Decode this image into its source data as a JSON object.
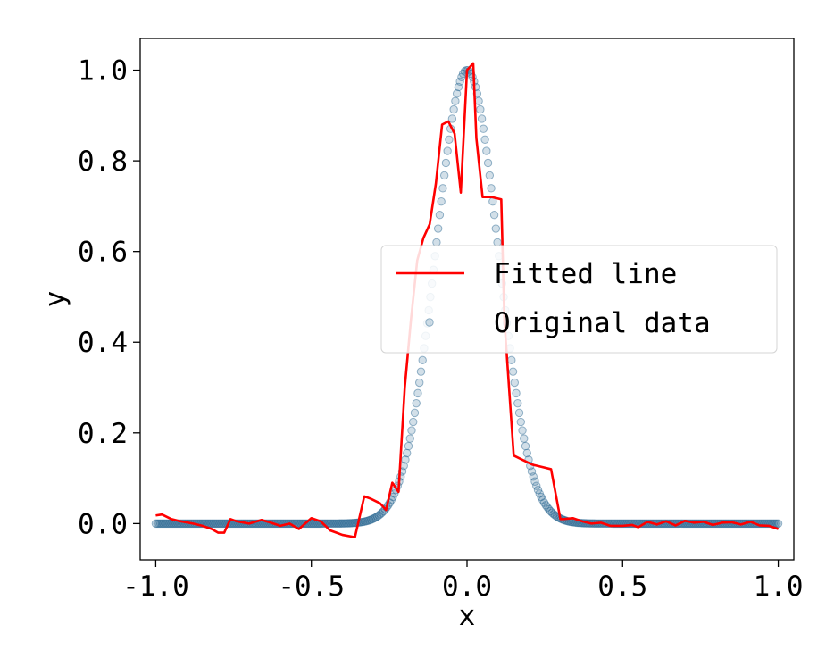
{
  "chart_data": {
    "type": "scatter",
    "xlabel": "x",
    "ylabel": "y",
    "xlim": [
      -1.05,
      1.05
    ],
    "ylim": [
      -0.08,
      1.07
    ],
    "x_ticks": [
      -1.0,
      -0.5,
      0.0,
      0.5,
      1.0
    ],
    "x_tick_labels": [
      "-1.0",
      "-0.5",
      "0.0",
      "0.5",
      "1.0"
    ],
    "y_ticks": [
      0.0,
      0.2,
      0.4,
      0.6,
      0.8,
      1.0
    ],
    "y_tick_labels": [
      "0.0",
      "0.2",
      "0.4",
      "0.6",
      "0.8",
      "1.0"
    ],
    "grid": false,
    "legend": {
      "position": "center-right",
      "entries": [
        {
          "label": "Fitted line",
          "style": "line",
          "color": "#ff0000"
        },
        {
          "label": "Original data",
          "style": "marker",
          "color": "#1f5f8b"
        }
      ]
    },
    "series": [
      {
        "name": "Original data",
        "kind": "scatter",
        "color": "#1f5f8b",
        "function": "gaussian",
        "amplitude": 1.0,
        "center": 0.0,
        "sigma": 0.1,
        "x_range": [
          -1.0,
          1.0
        ],
        "n_points": 400
      },
      {
        "name": "Fitted line",
        "kind": "line",
        "color": "#ff0000",
        "x": [
          -1.0,
          -0.98,
          -0.95,
          -0.92,
          -0.88,
          -0.85,
          -0.82,
          -0.8,
          -0.78,
          -0.76,
          -0.74,
          -0.7,
          -0.66,
          -0.63,
          -0.6,
          -0.57,
          -0.54,
          -0.5,
          -0.47,
          -0.44,
          -0.42,
          -0.4,
          -0.36,
          -0.33,
          -0.31,
          -0.28,
          -0.26,
          -0.24,
          -0.22,
          -0.2,
          -0.18,
          -0.16,
          -0.14,
          -0.12,
          -0.1,
          -0.08,
          -0.06,
          -0.04,
          -0.02,
          0.0,
          0.02,
          0.03,
          0.05,
          0.08,
          0.11,
          0.12,
          0.15,
          0.18,
          0.21,
          0.24,
          0.27,
          0.3,
          0.31,
          0.34,
          0.37,
          0.4,
          0.43,
          0.46,
          0.5,
          0.53,
          0.55,
          0.58,
          0.61,
          0.64,
          0.67,
          0.7,
          0.73,
          0.76,
          0.79,
          0.82,
          0.85,
          0.88,
          0.91,
          0.94,
          0.97,
          1.0
        ],
        "y": [
          0.018,
          0.02,
          0.01,
          0.005,
          0.0,
          -0.005,
          -0.012,
          -0.02,
          -0.02,
          0.01,
          0.005,
          0.0,
          0.008,
          0.002,
          -0.005,
          0.0,
          -0.012,
          0.012,
          0.005,
          -0.015,
          -0.02,
          -0.025,
          -0.03,
          0.06,
          0.055,
          0.045,
          0.03,
          0.09,
          0.07,
          0.3,
          0.45,
          0.58,
          0.63,
          0.66,
          0.75,
          0.88,
          0.887,
          0.86,
          0.73,
          1.0,
          1.015,
          0.85,
          0.72,
          0.72,
          0.715,
          0.45,
          0.15,
          0.14,
          0.13,
          0.125,
          0.12,
          0.01,
          0.01,
          0.012,
          0.005,
          0.0,
          0.002,
          -0.005,
          -0.005,
          -0.003,
          -0.008,
          0.004,
          -0.002,
          0.005,
          -0.004,
          0.006,
          0.002,
          0.004,
          -0.003,
          0.002,
          0.003,
          -0.002,
          0.004,
          -0.004,
          -0.005,
          -0.012
        ]
      }
    ]
  }
}
